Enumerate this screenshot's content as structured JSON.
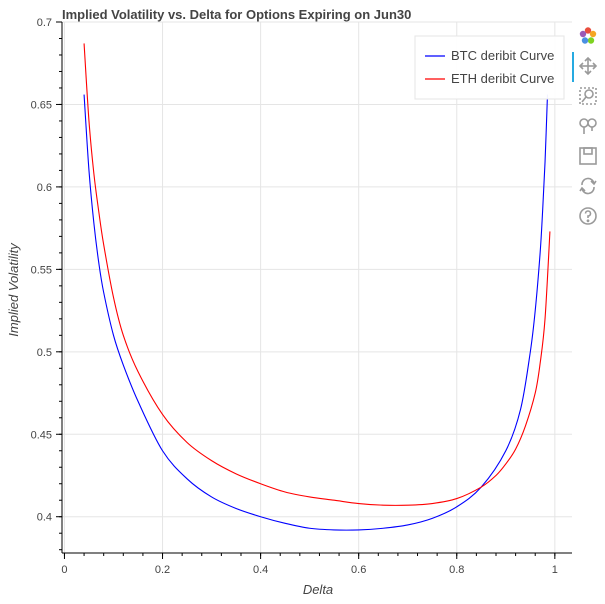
{
  "chart_data": {
    "type": "line",
    "title": "Implied Volatility vs. Delta for Options Expiring on Jun30",
    "xlabel": "Delta",
    "ylabel": "Implied Volatility",
    "xlim": [
      -0.005,
      1.035
    ],
    "ylim": [
      0.378,
      0.7
    ],
    "x_ticks": [
      0,
      0.2,
      0.4,
      0.6,
      0.8,
      1
    ],
    "x_tick_labels": [
      "0",
      "0.2",
      "0.4",
      "0.6",
      "0.8",
      "1"
    ],
    "y_ticks": [
      0.4,
      0.45,
      0.5,
      0.55,
      0.6,
      0.65,
      0.7
    ],
    "y_tick_labels": [
      "0.4",
      "0.45",
      "0.5",
      "0.55",
      "0.6",
      "0.65",
      "0.7"
    ],
    "grid": true,
    "legend_position": "top-right",
    "series": [
      {
        "name": "BTC deribit Curve",
        "color": "#0000ff",
        "x": [
          0.04,
          0.05,
          0.06,
          0.07,
          0.08,
          0.1,
          0.12,
          0.15,
          0.2,
          0.25,
          0.3,
          0.35,
          0.4,
          0.45,
          0.5,
          0.55,
          0.6,
          0.65,
          0.7,
          0.75,
          0.8,
          0.85,
          0.9,
          0.93,
          0.95,
          0.96,
          0.97,
          0.975,
          0.98,
          0.985
        ],
        "y": [
          0.656,
          0.61,
          0.578,
          0.554,
          0.536,
          0.51,
          0.492,
          0.47,
          0.44,
          0.423,
          0.412,
          0.405,
          0.4,
          0.396,
          0.393,
          0.392,
          0.392,
          0.393,
          0.395,
          0.399,
          0.406,
          0.418,
          0.44,
          0.465,
          0.5,
          0.525,
          0.56,
          0.585,
          0.615,
          0.656
        ]
      },
      {
        "name": "ETH deribit Curve",
        "color": "#ff0000",
        "x": [
          0.04,
          0.05,
          0.06,
          0.07,
          0.08,
          0.1,
          0.12,
          0.15,
          0.2,
          0.25,
          0.3,
          0.35,
          0.4,
          0.45,
          0.5,
          0.55,
          0.6,
          0.65,
          0.7,
          0.75,
          0.8,
          0.85,
          0.88,
          0.9,
          0.92,
          0.94,
          0.96,
          0.97,
          0.98,
          0.99
        ],
        "y": [
          0.687,
          0.64,
          0.608,
          0.585,
          0.565,
          0.533,
          0.51,
          0.488,
          0.462,
          0.445,
          0.434,
          0.426,
          0.42,
          0.415,
          0.412,
          0.41,
          0.408,
          0.407,
          0.407,
          0.408,
          0.411,
          0.418,
          0.425,
          0.432,
          0.441,
          0.455,
          0.475,
          0.493,
          0.52,
          0.573
        ]
      }
    ]
  },
  "toolbar": {
    "tools": [
      "bokeh-logo",
      "pan-tool",
      "box-zoom-tool",
      "wheel-zoom-tool",
      "save-tool",
      "reset-tool",
      "help-tool"
    ]
  }
}
